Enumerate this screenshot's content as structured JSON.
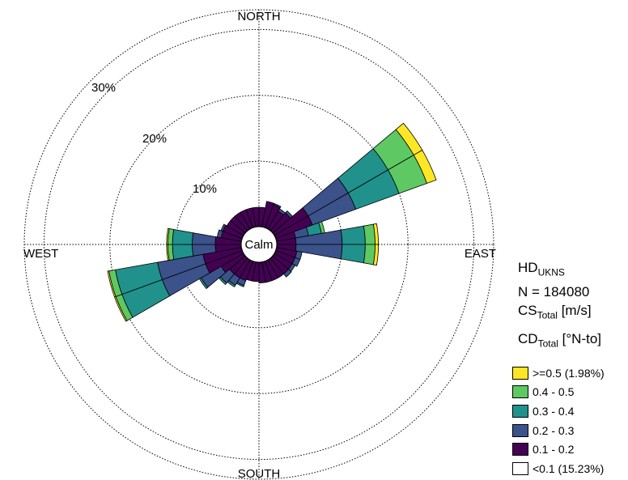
{
  "chart_data": {
    "type": "wind-rose",
    "directions": {
      "north": "NORTH",
      "east": "EAST",
      "south": "SOUTH",
      "west": "WEST"
    },
    "ring_labels": [
      "10%",
      "20%",
      "30%"
    ],
    "ring_values": [
      10,
      20,
      30
    ],
    "max_percent": 33,
    "calm_label": "Calm",
    "bin_edges_deg": [
      0,
      10,
      20,
      30,
      40,
      50,
      60,
      70,
      80,
      90,
      100,
      110,
      120,
      130,
      140,
      150,
      160,
      170,
      180,
      190,
      200,
      210,
      220,
      230,
      240,
      250,
      260,
      270,
      280,
      290,
      300,
      310,
      320,
      330,
      340,
      350,
      360
    ],
    "legend": [
      {
        "label": ">=0.5 (1.98%)",
        "color": "#fde725"
      },
      {
        "label": "0.4 - 0.5",
        "color": "#5ec962"
      },
      {
        "label": "0.3 - 0.4",
        "color": "#21918c"
      },
      {
        "label": "0.2 - 0.3",
        "color": "#3b528b"
      },
      {
        "label": "0.1 - 0.2",
        "color": "#440154"
      },
      {
        "label": "<0.1 (15.23%)",
        "color": "#ffffff"
      }
    ],
    "sectors": [
      {
        "dir_start": 0,
        "dir_end": 10,
        "cumulative": [
          0.1,
          3.0
        ]
      },
      {
        "dir_start": 10,
        "dir_end": 20,
        "cumulative": [
          0.1,
          4.0
        ]
      },
      {
        "dir_start": 20,
        "dir_end": 30,
        "cumulative": [
          0.1,
          3.8,
          4.0
        ]
      },
      {
        "dir_start": 30,
        "dir_end": 40,
        "cumulative": [
          0.1,
          3.2,
          3.6
        ]
      },
      {
        "dir_start": 40,
        "dir_end": 50,
        "cumulative": [
          0.1,
          3.6,
          4.0
        ]
      },
      {
        "dir_start": 50,
        "dir_end": 60,
        "cumulative": [
          0.1,
          6.0,
          13.0,
          20.0,
          24.5,
          26.0
        ]
      },
      {
        "dir_start": 60,
        "dir_end": 70,
        "cumulative": [
          0.1,
          6.0,
          13.0,
          20.0,
          24.5,
          26.0
        ]
      },
      {
        "dir_start": 70,
        "dir_end": 80,
        "cumulative": [
          0.1,
          3.0,
          5.0,
          7.0,
          7.5
        ]
      },
      {
        "dir_start": 80,
        "dir_end": 90,
        "cumulative": [
          0.1,
          3.0,
          10.0,
          13.5,
          15.0,
          15.5
        ]
      },
      {
        "dir_start": 90,
        "dir_end": 100,
        "cumulative": [
          0.1,
          3.0,
          10.0,
          13.5,
          15.0,
          15.5
        ]
      },
      {
        "dir_start": 100,
        "dir_end": 110,
        "cumulative": [
          0.1,
          3.2,
          4.0
        ]
      },
      {
        "dir_start": 110,
        "dir_end": 120,
        "cumulative": [
          0.1,
          3.2,
          4.0
        ]
      },
      {
        "dir_start": 120,
        "dir_end": 130,
        "cumulative": [
          0.1,
          3.2,
          3.7
        ]
      },
      {
        "dir_start": 130,
        "dir_end": 140,
        "cumulative": [
          0.1,
          3.2,
          3.8
        ]
      },
      {
        "dir_start": 140,
        "dir_end": 150,
        "cumulative": [
          0.1,
          3.2
        ]
      },
      {
        "dir_start": 150,
        "dir_end": 160,
        "cumulative": [
          0.1,
          3.2
        ]
      },
      {
        "dir_start": 160,
        "dir_end": 170,
        "cumulative": [
          0.1,
          3.2
        ]
      },
      {
        "dir_start": 170,
        "dir_end": 180,
        "cumulative": [
          0.1,
          3.2
        ]
      },
      {
        "dir_start": 180,
        "dir_end": 190,
        "cumulative": [
          0.1,
          3.0
        ]
      },
      {
        "dir_start": 190,
        "dir_end": 200,
        "cumulative": [
          0.1,
          3.0
        ]
      },
      {
        "dir_start": 200,
        "dir_end": 210,
        "cumulative": [
          0.1,
          3.2,
          4.0,
          4.2
        ]
      },
      {
        "dir_start": 210,
        "dir_end": 220,
        "cumulative": [
          0.1,
          3.2,
          4.5,
          4.8
        ]
      },
      {
        "dir_start": 220,
        "dir_end": 230,
        "cumulative": [
          0.1,
          3.2,
          5.0,
          5.3
        ]
      },
      {
        "dir_start": 230,
        "dir_end": 240,
        "cumulative": [
          0.1,
          4.0,
          7.5,
          7.8
        ]
      },
      {
        "dir_start": 240,
        "dir_end": 250,
        "cumulative": [
          0.1,
          6.0,
          13.0,
          19.5,
          20.5,
          20.7
        ]
      },
      {
        "dir_start": 250,
        "dir_end": 260,
        "cumulative": [
          0.1,
          6.0,
          13.0,
          19.5,
          20.5,
          20.7
        ]
      },
      {
        "dir_start": 260,
        "dir_end": 270,
        "cumulative": [
          0.1,
          4.0,
          7.5,
          10.5,
          11.2,
          11.4
        ]
      },
      {
        "dir_start": 270,
        "dir_end": 280,
        "cumulative": [
          0.1,
          4.0,
          7.5,
          10.5,
          11.2,
          11.4
        ]
      },
      {
        "dir_start": 280,
        "dir_end": 290,
        "cumulative": [
          0.1,
          3.2,
          3.8
        ]
      },
      {
        "dir_start": 290,
        "dir_end": 300,
        "cumulative": [
          0.1,
          3.2,
          3.5
        ]
      },
      {
        "dir_start": 300,
        "dir_end": 310,
        "cumulative": [
          0.1,
          3.0
        ]
      },
      {
        "dir_start": 310,
        "dir_end": 320,
        "cumulative": [
          0.1,
          3.0
        ]
      },
      {
        "dir_start": 320,
        "dir_end": 330,
        "cumulative": [
          0.1,
          3.0
        ]
      },
      {
        "dir_start": 330,
        "dir_end": 340,
        "cumulative": [
          0.1,
          3.0
        ]
      },
      {
        "dir_start": 340,
        "dir_end": 350,
        "cumulative": [
          0.1,
          3.0
        ]
      },
      {
        "dir_start": 350,
        "dir_end": 360,
        "cumulative": [
          0.1,
          3.0
        ]
      }
    ]
  },
  "info": {
    "hd_main": "HD",
    "hd_sub": "UKNS",
    "n_line": "N = 184080",
    "cs_main": "CS",
    "cs_sub": "Total",
    "cs_unit": " [m/s]",
    "cd_main": "CD",
    "cd_sub": "Total",
    "cd_unit": " [°N-to]"
  }
}
